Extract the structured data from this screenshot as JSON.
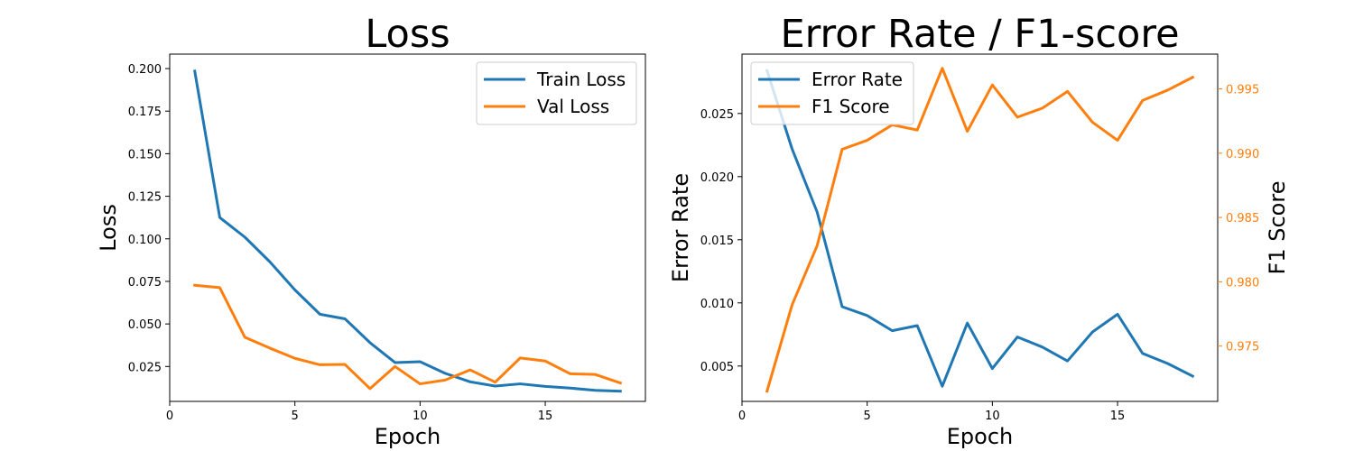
{
  "chart_data": [
    {
      "type": "line",
      "title": "Loss",
      "xlabel": "Epoch",
      "ylabel": "Loss",
      "x": [
        1,
        2,
        3,
        4,
        5,
        6,
        7,
        8,
        9,
        10,
        11,
        12,
        13,
        14,
        15,
        16,
        17,
        18
      ],
      "xlim": [
        0,
        19
      ],
      "ylim": [
        0.0045,
        0.2085
      ],
      "xticks": [
        0,
        5,
        10,
        15
      ],
      "yticks": [
        0.025,
        0.05,
        0.075,
        0.1,
        0.125,
        0.15,
        0.175,
        0.2
      ],
      "ytick_labels": [
        "0.025",
        "0.050",
        "0.075",
        "0.100",
        "0.125",
        "0.150",
        "0.175",
        "0.200"
      ],
      "grid": false,
      "legend_position": "upper right",
      "series": [
        {
          "name": "Train Loss",
          "color": "#1f77b4",
          "values": [
            0.1985,
            0.1125,
            0.101,
            0.0865,
            0.07,
            0.0557,
            0.053,
            0.039,
            0.0273,
            0.0278,
            0.021,
            0.016,
            0.0135,
            0.0148,
            0.0133,
            0.0123,
            0.011,
            0.0105
          ]
        },
        {
          "name": "Val Loss",
          "color": "#ff7f0e",
          "values": [
            0.0727,
            0.0713,
            0.0422,
            0.0358,
            0.0298,
            0.026,
            0.0262,
            0.012,
            0.025,
            0.0148,
            0.017,
            0.023,
            0.0158,
            0.03,
            0.0282,
            0.0207,
            0.0203,
            0.0153
          ]
        }
      ]
    },
    {
      "type": "line",
      "title": "Error Rate / F1-score",
      "xlabel": "Epoch",
      "ylabel": "Error Rate",
      "ylabel_right": "F1 Score",
      "x": [
        1,
        2,
        3,
        4,
        5,
        6,
        7,
        8,
        9,
        10,
        11,
        12,
        13,
        14,
        15,
        16,
        17,
        18
      ],
      "xlim": [
        0,
        19
      ],
      "ylim": [
        0.0022,
        0.0297
      ],
      "ylim_right": [
        0.9707,
        0.9977
      ],
      "xticks": [
        0,
        5,
        10,
        15
      ],
      "yticks": [
        0.005,
        0.01,
        0.015,
        0.02,
        0.025
      ],
      "ytick_labels": [
        "0.005",
        "0.010",
        "0.015",
        "0.020",
        "0.025"
      ],
      "yticks_right": [
        0.975,
        0.98,
        0.985,
        0.99,
        0.995
      ],
      "ytick_labels_right": [
        "0.975",
        "0.980",
        "0.985",
        "0.990",
        "0.995"
      ],
      "grid": false,
      "legend_position": "upper left",
      "series": [
        {
          "name": "Error Rate",
          "axis": "left",
          "color": "#1f77b4",
          "values": [
            0.0284,
            0.0222,
            0.0172,
            0.0097,
            0.009,
            0.0078,
            0.0082,
            0.0034,
            0.0084,
            0.0048,
            0.0073,
            0.0065,
            0.0054,
            0.0077,
            0.0091,
            0.006,
            0.0052,
            0.0042
          ]
        },
        {
          "name": "F1 Score",
          "axis": "right",
          "color": "#ff7f0e",
          "values": [
            0.9715,
            0.9782,
            0.9828,
            0.9903,
            0.991,
            0.9922,
            0.9918,
            0.9966,
            0.9917,
            0.9953,
            0.9928,
            0.9935,
            0.9948,
            0.9924,
            0.991,
            0.9941,
            0.9949,
            0.9959
          ]
        }
      ]
    }
  ]
}
